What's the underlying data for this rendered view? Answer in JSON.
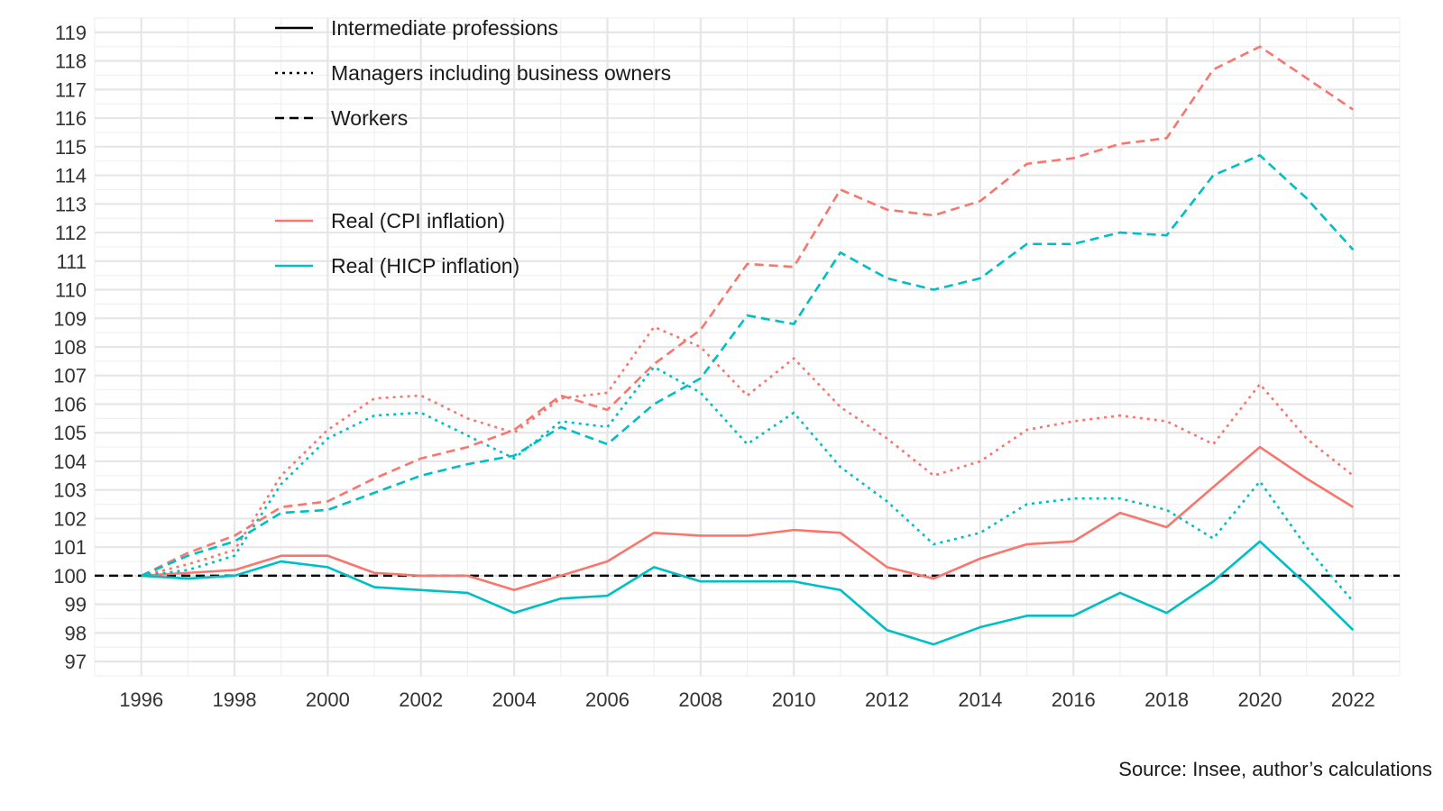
{
  "chart_data": {
    "type": "line",
    "x": [
      1996,
      1997,
      1998,
      1999,
      2000,
      2001,
      2002,
      2003,
      2004,
      2005,
      2006,
      2007,
      2008,
      2009,
      2010,
      2011,
      2012,
      2013,
      2014,
      2015,
      2016,
      2017,
      2018,
      2019,
      2020,
      2021,
      2022
    ],
    "x_ticks": [
      1996,
      1998,
      2000,
      2002,
      2004,
      2006,
      2008,
      2010,
      2012,
      2014,
      2016,
      2018,
      2020,
      2022
    ],
    "x_range": [
      1995,
      2023
    ],
    "y_ticks": [
      97,
      98,
      99,
      100,
      101,
      102,
      103,
      104,
      105,
      106,
      107,
      108,
      109,
      110,
      111,
      112,
      113,
      114,
      115,
      116,
      117,
      118,
      119
    ],
    "y_range": [
      96.5,
      119.5
    ],
    "grid": true,
    "reference_line": {
      "y": 100,
      "style": "dashed",
      "color": "#000000"
    },
    "series": [
      {
        "name": "Intermediate professions",
        "group": "Intermediate professions",
        "measure": "Real (CPI inflation)",
        "color": "#F8766D",
        "dash": "solid",
        "values": [
          100,
          100.1,
          100.2,
          100.7,
          100.7,
          100.1,
          100.0,
          100.0,
          99.5,
          100.0,
          100.5,
          101.5,
          101.4,
          101.4,
          101.6,
          101.5,
          100.3,
          99.9,
          100.6,
          101.1,
          101.2,
          102.2,
          101.7,
          103.1,
          104.5,
          103.4,
          102.4
        ]
      },
      {
        "name": "Intermediate professions",
        "group": "Intermediate professions",
        "measure": "Real (HICP inflation)",
        "color": "#00BFC4",
        "dash": "solid",
        "values": [
          100,
          99.9,
          100.0,
          100.5,
          100.3,
          99.6,
          99.5,
          99.4,
          98.7,
          99.2,
          99.3,
          100.3,
          99.8,
          99.8,
          99.8,
          99.5,
          98.1,
          97.6,
          98.2,
          98.6,
          98.6,
          99.4,
          98.7,
          99.8,
          101.2,
          99.7,
          98.1
        ]
      },
      {
        "name": "Managers including business owners",
        "group": "Managers including business owners",
        "measure": "Real (CPI inflation)",
        "color": "#F8766D",
        "dash": "dotted",
        "values": [
          100,
          100.4,
          100.9,
          103.5,
          105.1,
          106.2,
          106.3,
          105.5,
          105.0,
          106.2,
          106.4,
          108.7,
          108.0,
          106.3,
          107.6,
          105.9,
          104.8,
          103.5,
          104.0,
          105.1,
          105.4,
          105.6,
          105.4,
          104.6,
          106.7,
          104.8,
          103.5
        ]
      },
      {
        "name": "Managers including business owners",
        "group": "Managers including business owners",
        "measure": "Real (HICP inflation)",
        "color": "#00BFC4",
        "dash": "dotted",
        "values": [
          100,
          100.2,
          100.7,
          103.2,
          104.8,
          105.6,
          105.7,
          104.9,
          104.1,
          105.4,
          105.2,
          107.3,
          106.4,
          104.6,
          105.7,
          103.8,
          102.6,
          101.1,
          101.5,
          102.5,
          102.7,
          102.7,
          102.3,
          101.3,
          103.3,
          101.0,
          99.1
        ]
      },
      {
        "name": "Workers",
        "group": "Workers",
        "measure": "Real (CPI inflation)",
        "color": "#F8766D",
        "dash": "dashed",
        "values": [
          100,
          100.8,
          101.4,
          102.4,
          102.6,
          103.4,
          104.1,
          104.5,
          105.1,
          106.3,
          105.8,
          107.4,
          108.6,
          110.9,
          110.8,
          113.5,
          112.8,
          112.6,
          113.1,
          114.4,
          114.6,
          115.1,
          115.3,
          117.7,
          118.5,
          117.4,
          116.3
        ]
      },
      {
        "name": "Workers",
        "group": "Workers",
        "measure": "Real (HICP inflation)",
        "color": "#00BFC4",
        "dash": "dashed",
        "values": [
          100,
          100.7,
          101.2,
          102.2,
          102.3,
          102.9,
          103.5,
          103.9,
          104.2,
          105.2,
          104.6,
          106.0,
          106.9,
          109.1,
          108.8,
          111.3,
          110.4,
          110.0,
          110.4,
          111.6,
          111.6,
          112.0,
          111.9,
          114.0,
          114.7,
          113.2,
          111.4
        ]
      }
    ],
    "legend_linetype": {
      "placement": "top-left",
      "items": [
        {
          "label": "Intermediate professions",
          "dash": "solid"
        },
        {
          "label": "Managers including business owners",
          "dash": "dotted"
        },
        {
          "label": "Workers",
          "dash": "dashed"
        }
      ]
    },
    "legend_color": {
      "placement": "top-left",
      "items": [
        {
          "label": "Real (CPI inflation)",
          "color": "#F8766D"
        },
        {
          "label": "Real (HICP inflation)",
          "color": "#00BFC4"
        }
      ]
    },
    "caption": "Source: Insee, author’s calculations"
  }
}
